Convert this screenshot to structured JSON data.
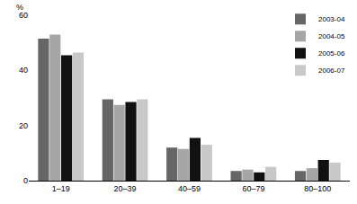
{
  "chart_data": {
    "type": "bar",
    "y_label": "%",
    "categories": [
      "1–19",
      "20–39",
      "40–59",
      "60–79",
      "80–100"
    ],
    "series": [
      {
        "name": "2003-04",
        "color": "#666666",
        "values": [
          51.5,
          29.5,
          12,
          3.5,
          3.5
        ]
      },
      {
        "name": "2004-05",
        "color": "#a6a6a6",
        "values": [
          53,
          27.5,
          11.5,
          4,
          4.5
        ]
      },
      {
        "name": "2005-06",
        "color": "#111111",
        "values": [
          45.5,
          28.5,
          15.5,
          3,
          7.5
        ]
      },
      {
        "name": "2006-07",
        "color": "#c8c8c8",
        "values": [
          46.5,
          29.5,
          13,
          5,
          6.5
        ]
      }
    ],
    "ylim": [
      0,
      60
    ],
    "yticks": [
      0,
      20,
      40,
      60
    ],
    "grid": true,
    "legend": "top right"
  }
}
